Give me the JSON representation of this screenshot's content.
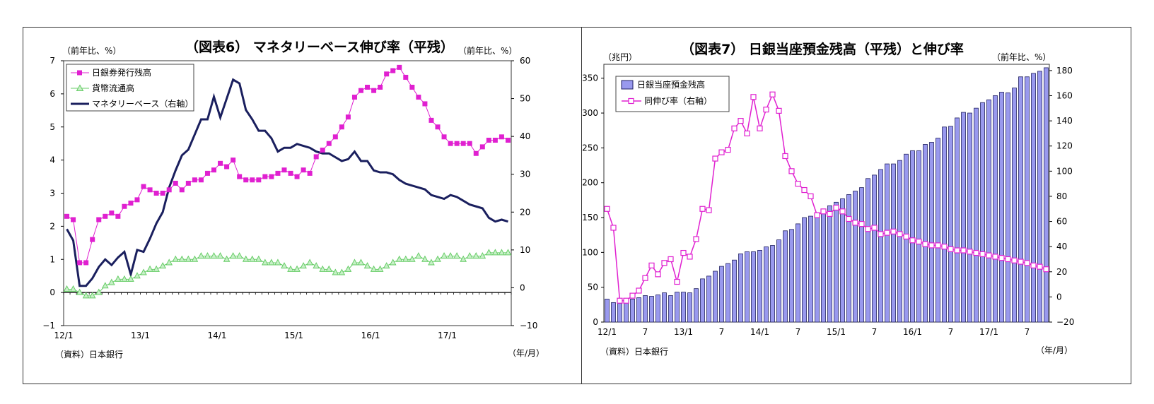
{
  "chart_data": [
    {
      "type": "line",
      "title": "（図表6） マネタリーベース伸び率（平残）",
      "y_left_label": "（前年比、%）",
      "y_right_label": "（前年比、%）",
      "source": "（資料）日本銀行",
      "x_unit_label": "（年/月）",
      "x_ticks": [
        "12/1",
        "13/1",
        "14/1",
        "15/1",
        "16/1",
        "17/1"
      ],
      "y_left_ticks": [
        "7",
        "6",
        "5",
        "4",
        "3",
        "2",
        "1",
        "0",
        "−1"
      ],
      "y_right_ticks": [
        "60",
        "50",
        "40",
        "30",
        "20",
        "10",
        "0",
        "−10"
      ],
      "ylim_left": [
        -1,
        7
      ],
      "ylim_right": [
        -10,
        60
      ],
      "legend_position": "top-left",
      "grid": false,
      "colors": {
        "bank_notes": "#e020d0",
        "coins": "#66cc66",
        "monetary_base": "#1a1f5e"
      },
      "series": [
        {
          "name": "日銀券発行残高",
          "axis": "left",
          "values": [
            2.3,
            2.2,
            0.9,
            0.9,
            1.6,
            2.2,
            2.3,
            2.4,
            2.3,
            2.6,
            2.7,
            2.8,
            3.2,
            3.1,
            3.0,
            3.0,
            3.1,
            3.3,
            3.1,
            3.3,
            3.4,
            3.4,
            3.6,
            3.7,
            3.9,
            3.8,
            4.0,
            3.5,
            3.4,
            3.4,
            3.4,
            3.5,
            3.5,
            3.6,
            3.7,
            3.6,
            3.5,
            3.7,
            3.6,
            4.1,
            4.3,
            4.5,
            4.7,
            5.0,
            5.3,
            5.9,
            6.1,
            6.2,
            6.1,
            6.2,
            6.6,
            6.7,
            6.8,
            6.5,
            6.2,
            5.9,
            5.7,
            5.2,
            5.0,
            4.7,
            4.5,
            4.5,
            4.5,
            4.5,
            4.2,
            4.4,
            4.6,
            4.6,
            4.7,
            4.6
          ]
        },
        {
          "name": "貨幣流通高",
          "axis": "left",
          "values": [
            0.1,
            0.1,
            0.0,
            -0.1,
            -0.1,
            0.0,
            0.2,
            0.3,
            0.4,
            0.4,
            0.4,
            0.5,
            0.6,
            0.7,
            0.7,
            0.8,
            0.9,
            1.0,
            1.0,
            1.0,
            1.0,
            1.1,
            1.1,
            1.1,
            1.1,
            1.0,
            1.1,
            1.1,
            1.0,
            1.0,
            1.0,
            0.9,
            0.9,
            0.9,
            0.8,
            0.7,
            0.7,
            0.8,
            0.9,
            0.8,
            0.7,
            0.7,
            0.6,
            0.6,
            0.7,
            0.9,
            0.9,
            0.8,
            0.7,
            0.7,
            0.8,
            0.9,
            1.0,
            1.0,
            1.0,
            1.1,
            1.0,
            0.9,
            1.0,
            1.1,
            1.1,
            1.1,
            1.0,
            1.1,
            1.1,
            1.1,
            1.2,
            1.2,
            1.2,
            1.2
          ]
        },
        {
          "name": "マネタリーベース（右軸）",
          "axis": "right",
          "values": [
            15.5,
            12.5,
            0.5,
            0.5,
            2.5,
            5.5,
            7.5,
            6,
            8,
            9.5,
            3.5,
            10,
            9.5,
            13,
            17,
            20,
            26.5,
            31,
            35,
            36.5,
            40.5,
            44.5,
            44.5,
            50.5,
            45,
            50,
            55,
            54,
            47,
            44.5,
            41.5,
            41.5,
            39.5,
            36,
            37,
            37,
            38,
            37.5,
            37,
            36,
            35.5,
            35.5,
            34.5,
            33.5,
            34,
            36,
            33.5,
            33.5,
            31,
            30.5,
            30.5,
            30,
            28.5,
            27.5,
            27,
            26.5,
            26,
            24.5,
            24,
            23.5,
            24.5,
            24,
            23,
            22,
            21.5,
            21,
            18.5,
            17.5,
            18,
            17.5
          ]
        }
      ]
    },
    {
      "type": "bar",
      "title": "（図表7） 日銀当座預金残高（平残）と伸び率",
      "y_left_label": "（兆円）",
      "y_right_label": "（前年比、%）",
      "source": "（資料）日本銀行",
      "x_unit_label": "（年/月）",
      "x_ticks": [
        "12/1",
        "7",
        "13/1",
        "7",
        "14/1",
        "7",
        "15/1",
        "7",
        "16/1",
        "7",
        "17/1",
        "7"
      ],
      "y_left_ticks": [
        "350",
        "300",
        "250",
        "200",
        "150",
        "100",
        "50",
        "0"
      ],
      "y_right_ticks": [
        "180",
        "160",
        "140",
        "120",
        "100",
        "80",
        "60",
        "40",
        "20",
        "0",
        "−20"
      ],
      "ylim_left": [
        0,
        370
      ],
      "ylim_right": [
        -20,
        185
      ],
      "legend_position": "top-left",
      "grid": false,
      "colors": {
        "bars": "#9999ee",
        "bar_edge": "#202060",
        "growth": "#e020d0"
      },
      "series": [
        {
          "name": "日銀当座預金残高",
          "axis": "left",
          "kind": "bar",
          "values": [
            33,
            28,
            27,
            30,
            33,
            35,
            38,
            37,
            39,
            42,
            38,
            43,
            43,
            42,
            48,
            62,
            66,
            73,
            80,
            84,
            89,
            98,
            101,
            101,
            103,
            108,
            110,
            118,
            131,
            133,
            141,
            150,
            152,
            157,
            162,
            167,
            172,
            177,
            183,
            188,
            193,
            206,
            211,
            219,
            227,
            227,
            232,
            241,
            246,
            246,
            255,
            258,
            264,
            280,
            281,
            293,
            301,
            300,
            307,
            315,
            319,
            325,
            330,
            329,
            336,
            352,
            352,
            357,
            360,
            365
          ]
        },
        {
          "name": "同伸び率（右軸）",
          "axis": "right",
          "kind": "line",
          "values": [
            70,
            55,
            -3,
            -3,
            1,
            5,
            15,
            25,
            18,
            27,
            30,
            12,
            35,
            32,
            46,
            70,
            69,
            110,
            115,
            117,
            134,
            140,
            130,
            159,
            134,
            149,
            161,
            148,
            112,
            100,
            90,
            85,
            80,
            65,
            68,
            66,
            71,
            68,
            62,
            59,
            58,
            54,
            55,
            50,
            51,
            52,
            50,
            48,
            45,
            44,
            42,
            41,
            41,
            40,
            38,
            37,
            37,
            36,
            35,
            34,
            33,
            32,
            31,
            30,
            29,
            28,
            27,
            25,
            24,
            22
          ]
        }
      ]
    }
  ]
}
